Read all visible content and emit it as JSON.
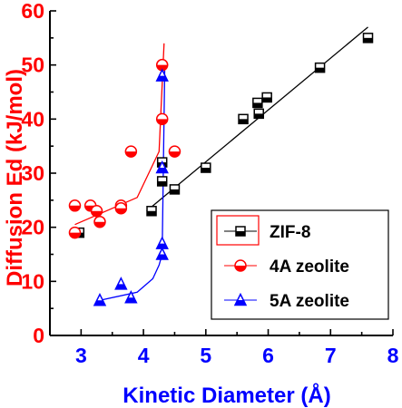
{
  "chart_data": {
    "type": "scatter",
    "xlabel": "Kinetic Diameter (Å)",
    "ylabel": "Diffusion Ed (kJ/mol)",
    "xlim": [
      2.5,
      8
    ],
    "ylim": [
      0,
      60
    ],
    "x_ticks": [
      "3",
      "4",
      "5",
      "6",
      "7",
      "8"
    ],
    "y_ticks": [
      "0",
      "10",
      "20",
      "30",
      "40",
      "50",
      "60"
    ],
    "grid": false,
    "legend_position": "bottom-right",
    "colors": {
      "zif8": "#000000",
      "zeolite4a": "#ff0000",
      "zeolite5a": "#0000ff",
      "axis_x": "#0000ff",
      "axis_y": "#ff0000"
    },
    "series": [
      {
        "name": "ZIF-8",
        "marker": "square-half-filled",
        "color": "#000000",
        "points": [
          {
            "x": 2.97,
            "y": 19
          },
          {
            "x": 4.13,
            "y": 23
          },
          {
            "x": 4.3,
            "y": 32
          },
          {
            "x": 4.3,
            "y": 28.5
          },
          {
            "x": 4.5,
            "y": 27
          },
          {
            "x": 5.0,
            "y": 31
          },
          {
            "x": 5.6,
            "y": 40
          },
          {
            "x": 5.83,
            "y": 43
          },
          {
            "x": 5.85,
            "y": 41
          },
          {
            "x": 5.98,
            "y": 44
          },
          {
            "x": 6.83,
            "y": 49.5
          },
          {
            "x": 7.6,
            "y": 55
          }
        ],
        "fit": {
          "x": [
            4.05,
            7.6
          ],
          "y": [
            23,
            57
          ]
        }
      },
      {
        "name": "4A zeolite",
        "marker": "circle-half-filled",
        "color": "#ff0000",
        "points": [
          {
            "x": 2.9,
            "y": 24
          },
          {
            "x": 2.9,
            "y": 19
          },
          {
            "x": 3.15,
            "y": 24
          },
          {
            "x": 3.25,
            "y": 23
          },
          {
            "x": 3.3,
            "y": 21
          },
          {
            "x": 3.64,
            "y": 24
          },
          {
            "x": 3.64,
            "y": 23.5
          },
          {
            "x": 3.8,
            "y": 34
          },
          {
            "x": 4.3,
            "y": 50
          },
          {
            "x": 4.3,
            "y": 40
          },
          {
            "x": 4.5,
            "y": 34
          }
        ],
        "fit": {
          "x": [
            2.9,
            3.9,
            4.25,
            4.33
          ],
          "y": [
            20.5,
            25.5,
            34,
            54
          ]
        }
      },
      {
        "name": "5A zeolite",
        "marker": "triangle-half-filled",
        "color": "#0000ff",
        "points": [
          {
            "x": 3.3,
            "y": 6.5
          },
          {
            "x": 3.64,
            "y": 9.5
          },
          {
            "x": 3.8,
            "y": 7
          },
          {
            "x": 4.3,
            "y": 48
          },
          {
            "x": 4.3,
            "y": 31
          },
          {
            "x": 4.3,
            "y": 17
          },
          {
            "x": 4.3,
            "y": 15
          }
        ],
        "fit": {
          "x": [
            3.3,
            3.9,
            4.15,
            4.25,
            4.3,
            4.34
          ],
          "y": [
            6.5,
            8,
            10.5,
            13,
            15,
            49
          ]
        }
      }
    ]
  }
}
